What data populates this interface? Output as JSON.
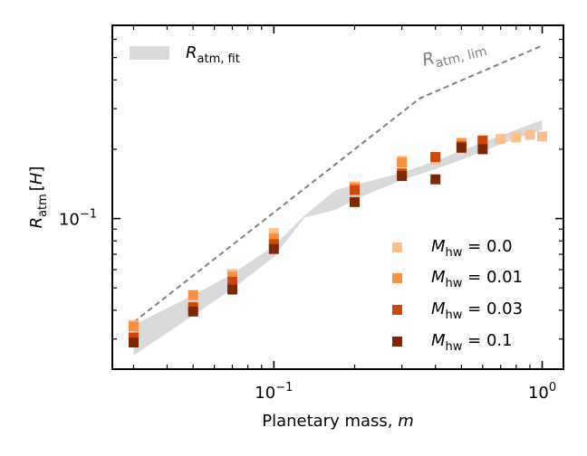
{
  "chart_data": {
    "type": "scatter",
    "title": "",
    "xlabel": "Planetary mass,",
    "xlabel_var": "m",
    "ylabel_var": "R",
    "ylabel_sub": "atm",
    "ylabel_unit": "H",
    "xscale": "log",
    "yscale": "log",
    "xlim": [
      0.025,
      1.2
    ],
    "ylim": [
      0.0222,
      0.69
    ],
    "x_ticks": [
      {
        "value": 0.1,
        "base": "10",
        "exp": "−1"
      },
      {
        "value": 1.0,
        "base": "10",
        "exp": "0"
      }
    ],
    "y_ticks": [
      {
        "value": 0.1,
        "base": "10",
        "exp": "−1"
      }
    ],
    "fit_band": {
      "legend_base": "R",
      "legend_sub": "atm, fit",
      "color": "#d9d9d9",
      "x": [
        0.03,
        0.05,
        0.07,
        0.1,
        0.13,
        0.17,
        0.2,
        0.3,
        0.4,
        0.5,
        0.6,
        0.7,
        0.8,
        0.9,
        1.0
      ],
      "lower": [
        0.0255,
        0.038,
        0.0495,
        0.068,
        0.101,
        0.109,
        0.121,
        0.147,
        0.164,
        0.18,
        0.196,
        0.21,
        0.222,
        0.233,
        0.243
      ],
      "upper": [
        0.0345,
        0.0465,
        0.0575,
        0.076,
        0.103,
        0.133,
        0.14,
        0.158,
        0.178,
        0.197,
        0.214,
        0.229,
        0.243,
        0.256,
        0.268
      ]
    },
    "lim_line": {
      "label_base": "R",
      "label_sub": "atm, lim",
      "color": "#808080",
      "x": [
        0.03,
        0.35,
        1.0
      ],
      "y": [
        0.0355,
        0.333,
        0.563
      ]
    },
    "series": [
      {
        "name_var": "M",
        "name_sub": "hw",
        "name_value": "0.0",
        "color": "#fdc08c",
        "x": [
          0.03,
          0.05,
          0.07,
          0.1,
          0.2,
          0.3,
          0.4,
          0.5,
          0.6,
          0.7,
          0.8,
          0.9,
          1.0
        ],
        "y": [
          0.0345,
          0.0465,
          0.0575,
          0.0865,
          0.138,
          0.178,
          0.181,
          0.212,
          0.219,
          0.222,
          0.225,
          0.231,
          0.227
        ]
      },
      {
        "name_var": "M",
        "name_sub": "hw",
        "name_value": "0.01",
        "color": "#fb8f40",
        "x": [
          0.03,
          0.05,
          0.07,
          0.1,
          0.2,
          0.3,
          0.4,
          0.5,
          0.6
        ],
        "y": [
          0.034,
          0.0465,
          0.056,
          0.082,
          0.136,
          0.175,
          0.185,
          0.213,
          0.218
        ]
      },
      {
        "name_var": "M",
        "name_sub": "hw",
        "name_value": "0.03",
        "color": "#d04807",
        "x": [
          0.03,
          0.05,
          0.07,
          0.1,
          0.2,
          0.3,
          0.4,
          0.5,
          0.6
        ],
        "y": [
          0.0305,
          0.0413,
          0.0532,
          0.0775,
          0.133,
          0.157,
          0.185,
          0.206,
          0.218
        ]
      },
      {
        "name_var": "M",
        "name_sub": "hw",
        "name_value": "0.1",
        "color": "#7f2704",
        "x": [
          0.03,
          0.05,
          0.07,
          0.1,
          0.2,
          0.3,
          0.4,
          0.5,
          0.6
        ],
        "y": [
          0.029,
          0.0395,
          0.0492,
          0.0738,
          0.118,
          0.153,
          0.148,
          0.203,
          0.2
        ]
      }
    ],
    "grid": false,
    "legend_placement": [
      "top-left",
      "bottom-right"
    ]
  }
}
